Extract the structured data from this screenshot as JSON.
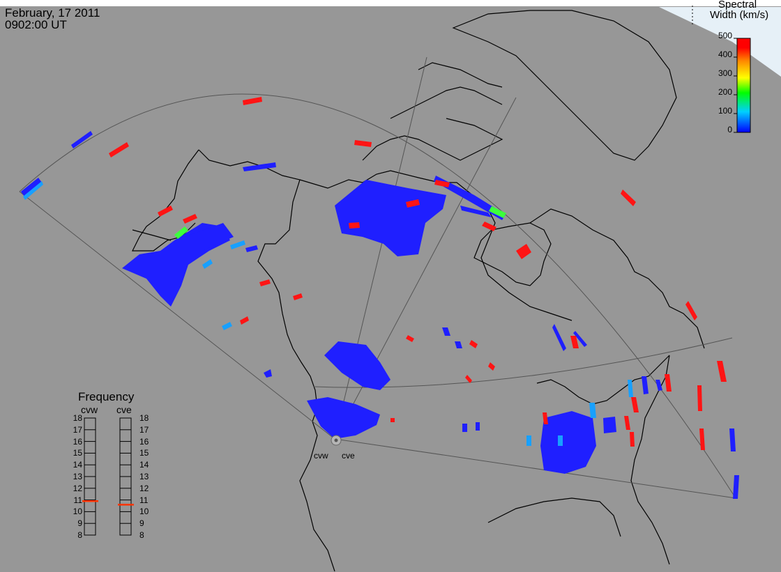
{
  "header": {
    "date": "February, 17 2011",
    "time": "0902:00 UT"
  },
  "colorbar": {
    "title_line1": "Spectral",
    "title_line2": "Width (km/s)",
    "ticks": [
      "500",
      "400",
      "300",
      "200",
      "100",
      "0"
    ],
    "min": 0,
    "max": 500,
    "colors": [
      "#0000ff",
      "#00d0ff",
      "#00ff00",
      "#ffff00",
      "#ff8800",
      "#ff0000"
    ]
  },
  "frequency_panel": {
    "title": "Frequency",
    "radars": [
      {
        "name": "cvw",
        "value_mhz": 10.9
      },
      {
        "name": "cve",
        "value_mhz": 10.6
      }
    ],
    "ticks": [
      "18",
      "17",
      "16",
      "15",
      "14",
      "13",
      "12",
      "11",
      "10",
      "9",
      "8"
    ],
    "marker_color": "#ff3300"
  },
  "sites": [
    {
      "name": "cvw"
    },
    {
      "name": "cve"
    }
  ],
  "colors": {
    "background": "#979797",
    "ocean_corner": "#e6f0f7",
    "coastline": "#000000",
    "fov_line": "#555555"
  }
}
